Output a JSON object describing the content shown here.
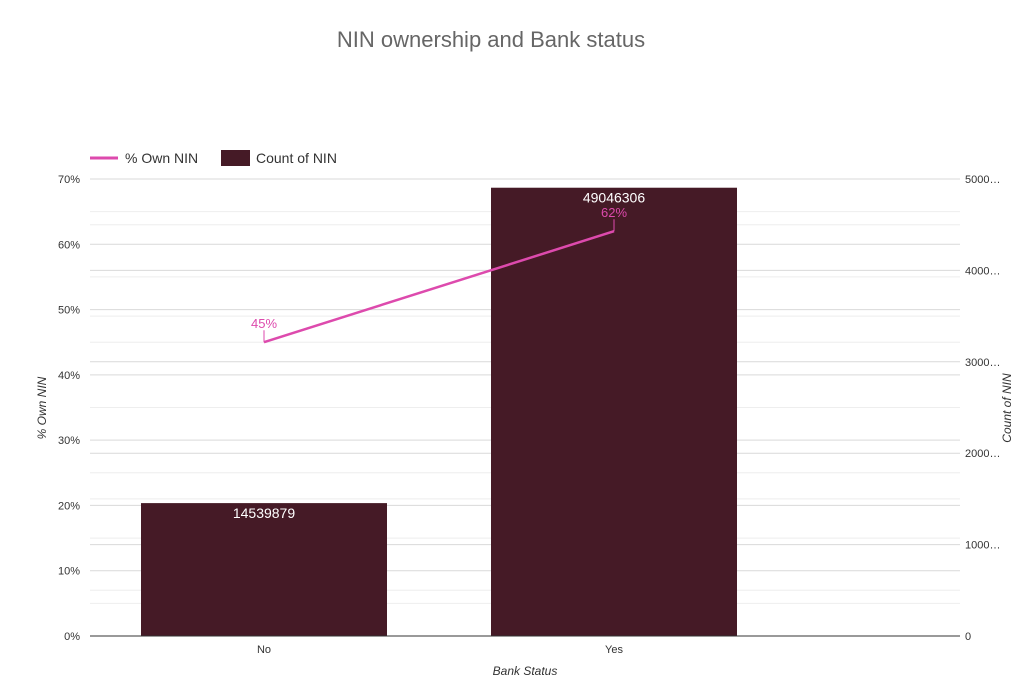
{
  "colors": {
    "line": "#dd4aad",
    "bar": "#451a26",
    "grid_major": "#d9d9d9",
    "grid_minor": "#eeeeee",
    "axis": "#333333",
    "title": "#666666",
    "tick_text": "#333333",
    "bar_label": "#ffffff"
  },
  "chart_data": {
    "type": "bar",
    "title": "NIN ownership and Bank status",
    "xlabel": "Bank Status",
    "categories": [
      "No",
      "Yes"
    ],
    "series": [
      {
        "name": "Count of NIN",
        "chart_type": "bar",
        "axis": "right",
        "values": [
          14539879,
          49046306
        ],
        "labels": [
          "14539879",
          "49046306"
        ]
      },
      {
        "name": "% Own NIN",
        "chart_type": "line",
        "axis": "left",
        "values": [
          45,
          62
        ],
        "labels": [
          "45%",
          "62%"
        ]
      }
    ],
    "y_left": {
      "label": "% Own NIN",
      "range": [
        0,
        70
      ],
      "ticks": [
        0,
        10,
        20,
        30,
        40,
        50,
        60,
        70
      ],
      "tick_labels": [
        "0%",
        "10%",
        "20%",
        "30%",
        "40%",
        "50%",
        "60%",
        "70%"
      ]
    },
    "y_right": {
      "label": "Count of NIN",
      "range": [
        0,
        50000000
      ],
      "ticks": [
        0,
        10000000,
        20000000,
        30000000,
        40000000,
        50000000
      ],
      "tick_labels": [
        "0",
        "1000…",
        "2000…",
        "3000…",
        "4000…",
        "5000…"
      ]
    },
    "legend": {
      "position": "top-left"
    },
    "grid": true
  }
}
